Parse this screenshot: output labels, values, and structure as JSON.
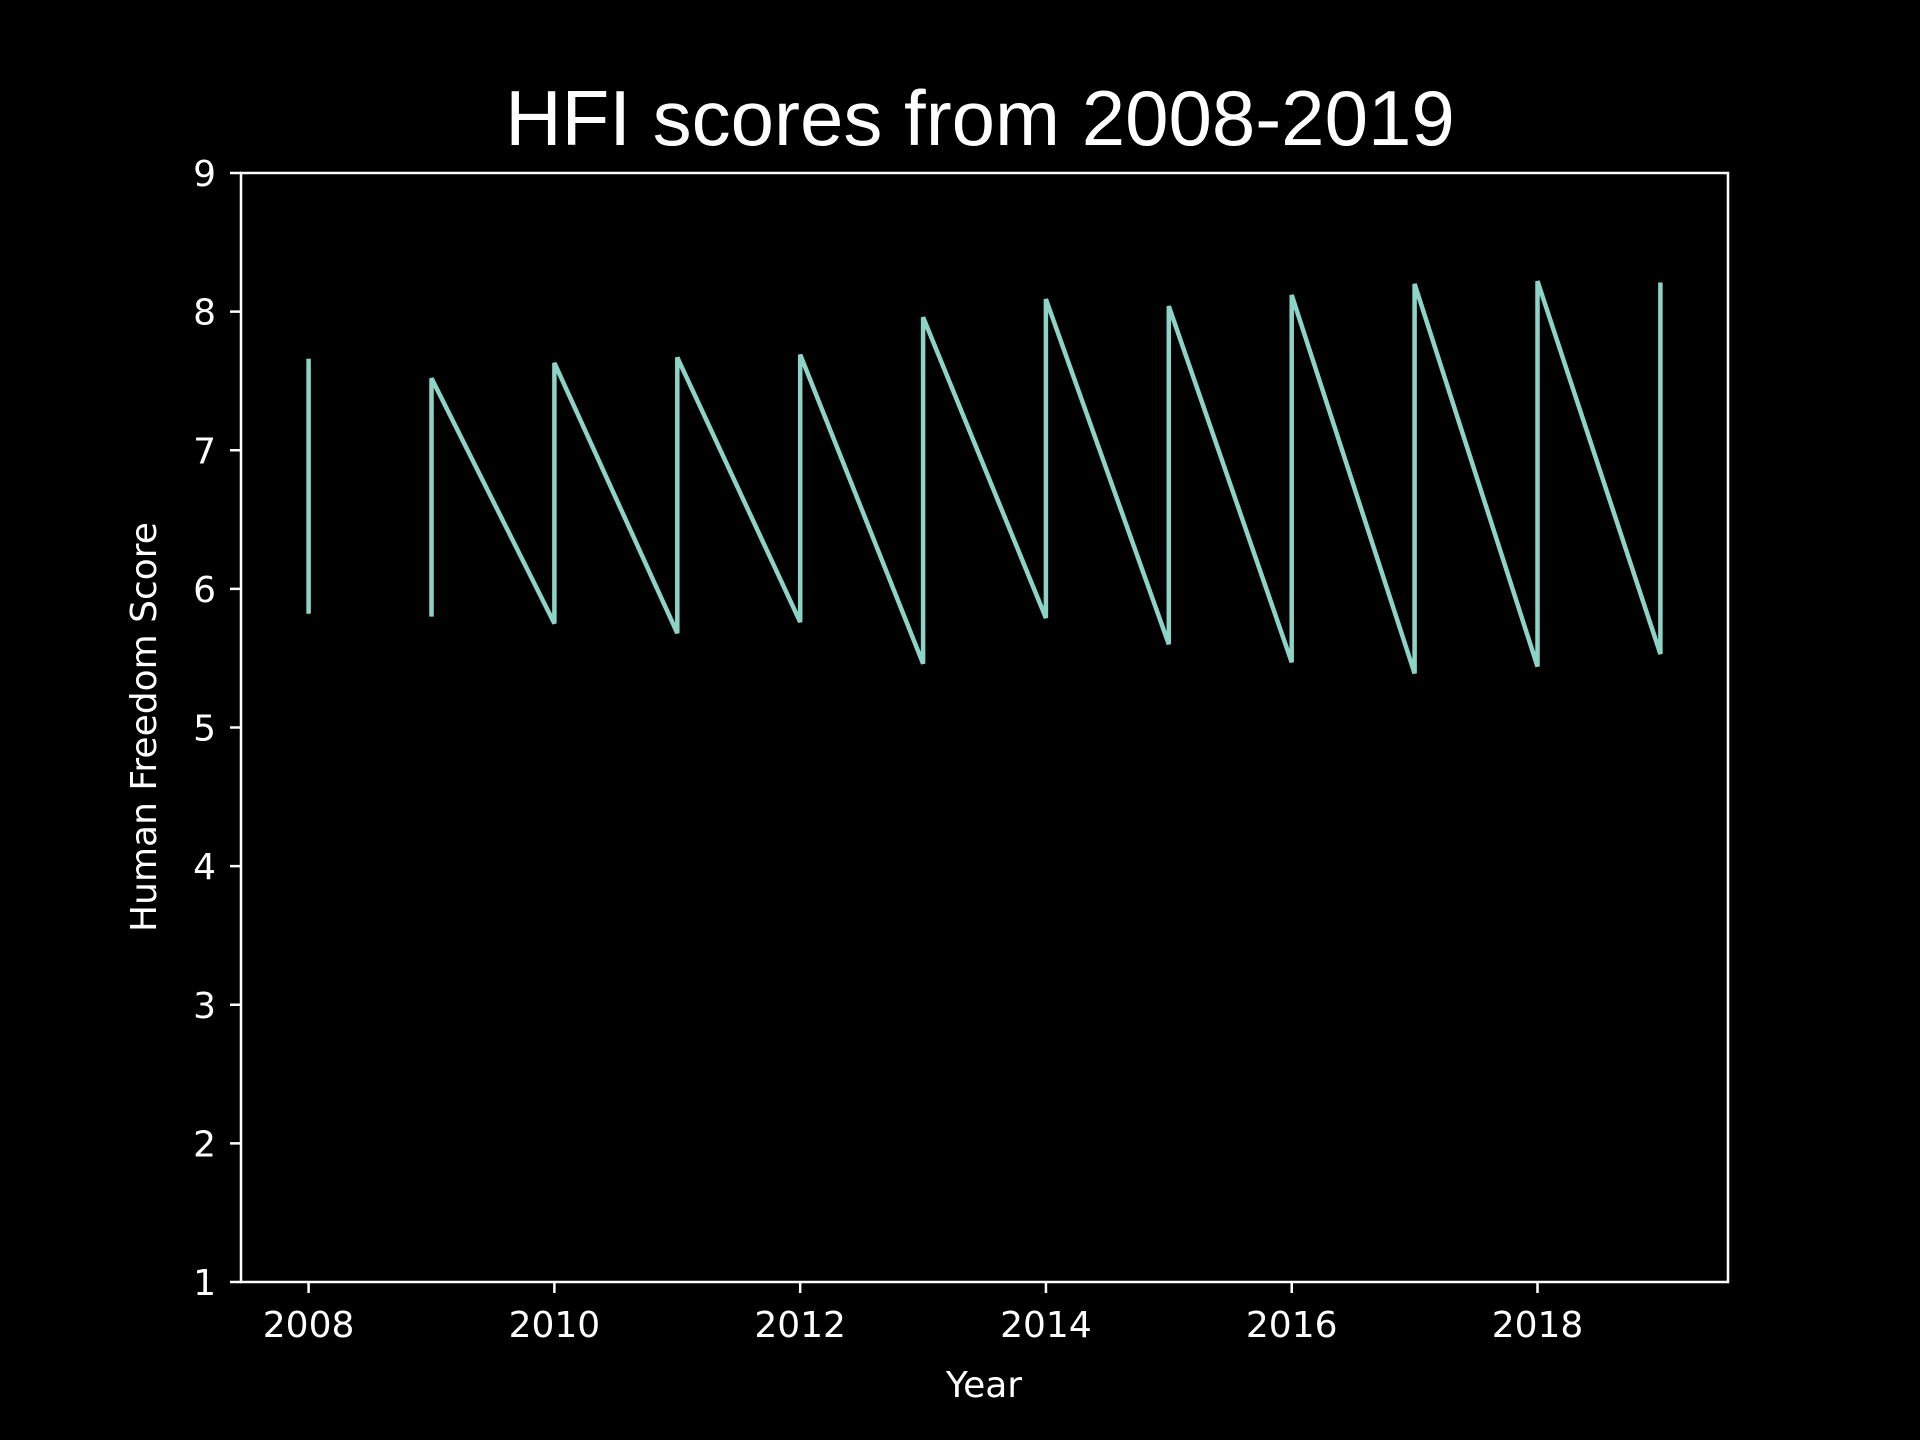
{
  "chart_data": {
    "type": "line",
    "title": "HFI scores from 2008-2019",
    "xlabel": "Year",
    "ylabel": "Human Freedom Score",
    "xlim": [
      2007.45,
      2019.55
    ],
    "ylim": [
      1,
      9
    ],
    "xticks": [
      2008,
      2010,
      2012,
      2014,
      2016,
      2018
    ],
    "yticks": [
      1,
      2,
      3,
      4,
      5,
      6,
      7,
      8,
      9
    ],
    "grid": false,
    "line_color": "#8dd3c7",
    "background": "#000000",
    "axes_color": "#ffffff",
    "series": [
      {
        "points": [
          [
            2008,
            7.66
          ],
          [
            2008,
            5.82
          ],
          null,
          [
            2009,
            5.8
          ],
          [
            2009,
            7.52
          ],
          [
            2010,
            5.75
          ],
          [
            2010,
            7.63
          ],
          [
            2011,
            5.68
          ],
          [
            2011,
            7.67
          ],
          [
            2012,
            5.76
          ],
          [
            2012,
            7.69
          ],
          [
            2013,
            5.46
          ],
          [
            2013,
            7.96
          ],
          [
            2014,
            5.79
          ],
          [
            2014,
            8.09
          ],
          [
            2015,
            5.6
          ],
          [
            2015,
            8.04
          ],
          [
            2016,
            5.47
          ],
          [
            2016,
            8.12
          ],
          [
            2017,
            5.39
          ],
          [
            2017,
            8.2
          ],
          [
            2018,
            5.44
          ],
          [
            2018,
            8.22
          ],
          [
            2019,
            5.53
          ],
          [
            2019,
            8.21
          ]
        ]
      }
    ]
  }
}
